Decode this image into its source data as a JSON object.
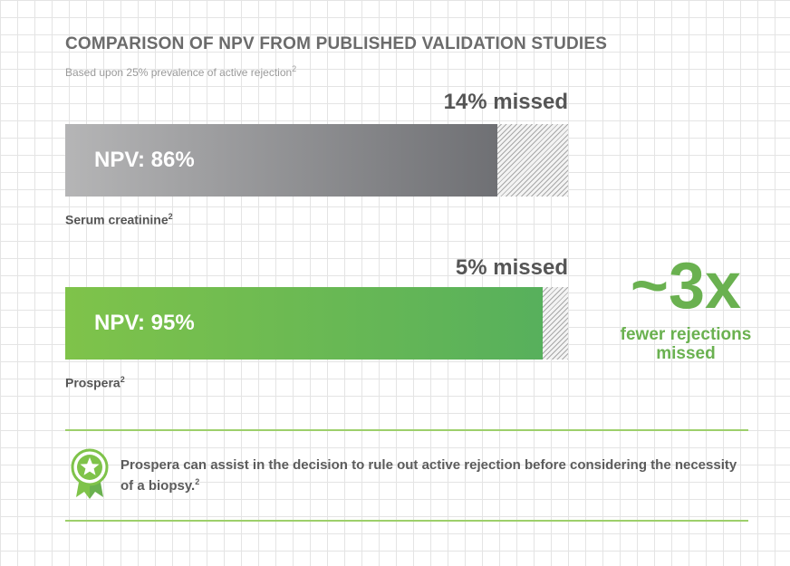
{
  "header": {
    "title": "COMPARISON OF NPV FROM PUBLISHED VALIDATION STUDIES",
    "subtitle": "Based upon 25% prevalence of active rejection",
    "subtitle_ref": "2"
  },
  "chart_data": {
    "type": "bar",
    "orientation": "horizontal",
    "stacked": true,
    "title": "COMPARISON OF NPV FROM PUBLISHED VALIDATION STUDIES",
    "subtitle": "Based upon 25% prevalence of active rejection",
    "categories": [
      "Serum creatinine",
      "Prospera"
    ],
    "series": [
      {
        "values": [
          86,
          95
        ]
      },
      {
        "values": [
          14,
          5
        ]
      }
    ],
    "bars": [
      {
        "category": "Serum creatinine",
        "ref": "2",
        "npv": 86,
        "npv_label": "NPV: 86%",
        "missed": 14,
        "missed_label": "14% missed",
        "colors": [
          "#b5b5b6",
          "#6f7074"
        ]
      },
      {
        "category": "Prospera",
        "ref": "2",
        "npv": 95,
        "npv_label": "NPV: 95%",
        "missed": 5,
        "missed_label": "5% missed",
        "colors": [
          "#7fc34a",
          "#57b05c"
        ]
      }
    ],
    "xlim": [
      0,
      100
    ],
    "grid": false,
    "legend": "none"
  },
  "callout": {
    "big_text": "~3x",
    "sub_text": "fewer rejections missed",
    "color": "#6ab150"
  },
  "footer_note": {
    "text": "Prospera can assist in the decision to rule out active rejection before considering the necessity of a biopsy.",
    "ref": "2",
    "icon": "award-ribbon-star-icon",
    "rule_color": "#9dcf6b"
  }
}
